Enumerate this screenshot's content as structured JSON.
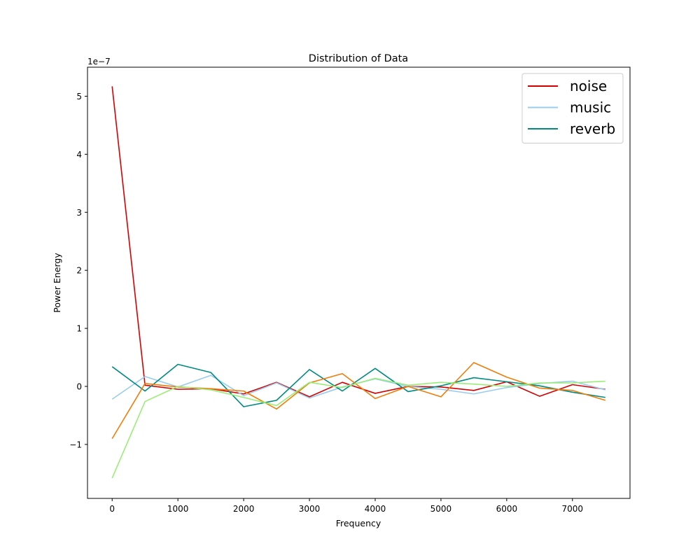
{
  "chart_data": {
    "type": "line",
    "title": "Distribution of Data",
    "xlabel": "Frequency",
    "ylabel": "Power Energy",
    "y_scale_label": "1e−7",
    "x": [
      0,
      500,
      1000,
      1500,
      2000,
      2500,
      3000,
      3500,
      4000,
      4500,
      5000,
      5500,
      6000,
      6500,
      7000,
      7500
    ],
    "xlim": [
      -375,
      7875
    ],
    "ylim": [
      -1.93,
      5.5
    ],
    "x_ticks": [
      0,
      1000,
      2000,
      3000,
      4000,
      5000,
      6000,
      7000
    ],
    "x_tick_labels": [
      "0",
      "1000",
      "2000",
      "3000",
      "4000",
      "5000",
      "6000",
      "7000"
    ],
    "y_ticks": [
      -1,
      0,
      1,
      2,
      3,
      4,
      5
    ],
    "y_tick_labels": [
      "−1",
      "0",
      "1",
      "2",
      "3",
      "4",
      "5"
    ],
    "grid": false,
    "legend_position": "top-right",
    "series": [
      {
        "name": "noise",
        "color": "#d40000",
        "in_legend": true,
        "values": [
          5.17,
          0.02,
          -0.05,
          -0.04,
          -0.13,
          0.07,
          -0.18,
          0.07,
          -0.12,
          0.0,
          -0.01,
          -0.07,
          0.08,
          -0.17,
          0.03,
          -0.05
        ]
      },
      {
        "name": "music",
        "color": "#99ccee",
        "in_legend": true,
        "values": [
          -0.22,
          0.17,
          -0.01,
          0.19,
          -0.16,
          0.06,
          -0.2,
          -0.01,
          0.13,
          0.0,
          -0.05,
          -0.13,
          -0.02,
          0.05,
          0.09,
          -0.06
        ]
      },
      {
        "name": "reverb",
        "color": "#008b80",
        "in_legend": true,
        "values": [
          0.34,
          -0.08,
          0.38,
          0.24,
          -0.35,
          -0.24,
          0.29,
          -0.08,
          0.31,
          -0.09,
          0.01,
          0.15,
          0.08,
          0.01,
          -0.1,
          -0.19
        ]
      },
      {
        "color": "#f07d0a",
        "in_legend": false,
        "values": [
          -0.9,
          0.05,
          -0.01,
          -0.04,
          -0.08,
          -0.39,
          0.06,
          0.22,
          -0.21,
          0.0,
          -0.18,
          0.41,
          0.16,
          -0.03,
          -0.07,
          -0.24
        ]
      },
      {
        "color": "#99ee77",
        "in_legend": false,
        "values": [
          -1.58,
          -0.26,
          0.0,
          -0.06,
          -0.19,
          -0.33,
          0.07,
          -0.02,
          0.14,
          0.02,
          0.07,
          0.04,
          0.0,
          0.06,
          0.06,
          0.09
        ]
      }
    ]
  }
}
